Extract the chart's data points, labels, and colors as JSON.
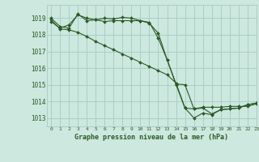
{
  "background_color": "#cce8df",
  "grid_color": "#aacfc4",
  "line_color": "#2d5a27",
  "title": "Graphe pression niveau de la mer (hPa)",
  "xlim": [
    -0.5,
    23
  ],
  "ylim": [
    1012.5,
    1019.8
  ],
  "yticks": [
    1013,
    1014,
    1015,
    1016,
    1017,
    1018,
    1019
  ],
  "xticks": [
    0,
    1,
    2,
    3,
    4,
    5,
    6,
    7,
    8,
    9,
    10,
    11,
    12,
    13,
    14,
    15,
    16,
    17,
    18,
    19,
    20,
    21,
    22,
    23
  ],
  "series": [
    {
      "x": [
        0,
        1,
        2,
        3,
        4,
        5,
        6,
        7,
        8,
        9,
        10,
        11,
        12,
        13,
        14,
        15,
        16,
        17,
        18,
        19,
        20,
        21,
        22,
        23
      ],
      "y": [
        1019.0,
        1018.5,
        1018.4,
        1019.25,
        1018.85,
        1018.9,
        1019.0,
        1018.95,
        1019.05,
        1019.0,
        1018.85,
        1018.75,
        1017.8,
        1016.5,
        1015.0,
        1013.6,
        1013.0,
        1013.3,
        1013.2,
        1013.5,
        1013.55,
        1013.6,
        1013.8,
        1013.9
      ]
    },
    {
      "x": [
        0,
        1,
        2,
        3,
        4,
        5,
        6,
        7,
        8,
        9,
        10,
        11,
        12,
        13,
        14,
        15,
        16,
        17,
        18,
        19,
        20,
        21,
        22,
        23
      ],
      "y": [
        1018.8,
        1018.4,
        1018.6,
        1019.2,
        1019.0,
        1018.9,
        1018.8,
        1018.85,
        1018.85,
        1018.85,
        1018.85,
        1018.7,
        1018.1,
        1016.5,
        1015.05,
        1015.0,
        1013.55,
        1013.65,
        1013.65,
        1013.65,
        1013.7,
        1013.7,
        1013.7,
        1013.85
      ]
    },
    {
      "x": [
        0,
        1,
        2,
        3,
        4,
        5,
        6,
        7,
        8,
        9,
        10,
        11,
        12,
        13,
        14,
        15,
        16,
        17,
        18,
        19,
        20,
        21,
        22,
        23
      ],
      "y": [
        1018.9,
        1018.35,
        1018.3,
        1018.15,
        1017.9,
        1017.6,
        1017.35,
        1017.1,
        1016.85,
        1016.6,
        1016.35,
        1016.1,
        1015.85,
        1015.6,
        1015.1,
        1013.6,
        1013.55,
        1013.6,
        1013.25,
        1013.5,
        1013.55,
        1013.6,
        1013.8,
        1013.9
      ]
    }
  ]
}
